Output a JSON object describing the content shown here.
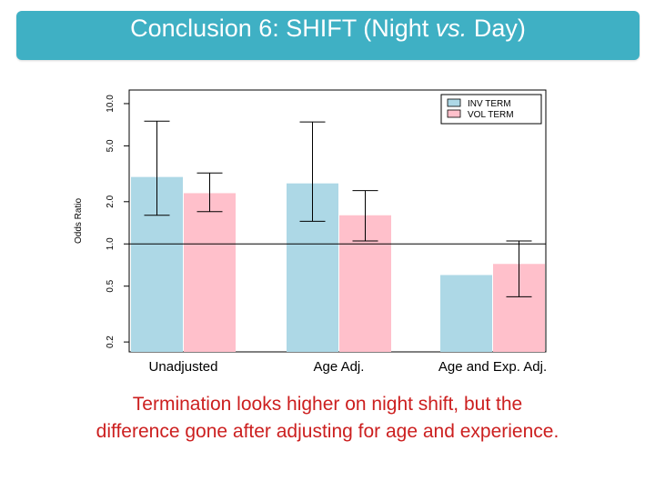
{
  "title": {
    "prefix": "Conclusion 6: SHIFT (Night ",
    "vs": "vs.",
    "suffix": " Day)"
  },
  "caption": {
    "line1": "Termination looks higher on night shift, but the",
    "line2": "difference gone after adjusting for age and experience."
  },
  "colors": {
    "title_bg": "#3fb0c4",
    "inv": "#add8e6",
    "vol": "#ffc0cb",
    "caption": "#cc1f1f"
  },
  "chart_data": {
    "type": "bar",
    "ylabel": "Odds Ratio",
    "ylim": [
      0.17,
      12.5
    ],
    "log_y": true,
    "yticks": [
      0.2,
      0.5,
      1.0,
      2.0,
      5.0,
      10.0
    ],
    "ytick_labels": [
      "0.2",
      "0.5",
      "1.0",
      "2.0",
      "5.0",
      "10.0"
    ],
    "reference_line": 1.0,
    "categories": [
      "Unadjusted",
      "Age Adj.",
      "Age and Exp. Adj."
    ],
    "legend": {
      "position": "top-right"
    },
    "series": [
      {
        "name": "INV TERM",
        "color": "#add8e6",
        "values": [
          3.0,
          2.7,
          0.6
        ],
        "ci_low": [
          1.6,
          1.45,
          null
        ],
        "ci_high": [
          7.5,
          7.4,
          null
        ]
      },
      {
        "name": "VOL TERM",
        "color": "#ffc0cb",
        "values": [
          2.3,
          1.6,
          0.72
        ],
        "ci_low": [
          1.7,
          1.05,
          0.42
        ],
        "ci_high": [
          3.2,
          2.4,
          1.05
        ]
      }
    ]
  }
}
